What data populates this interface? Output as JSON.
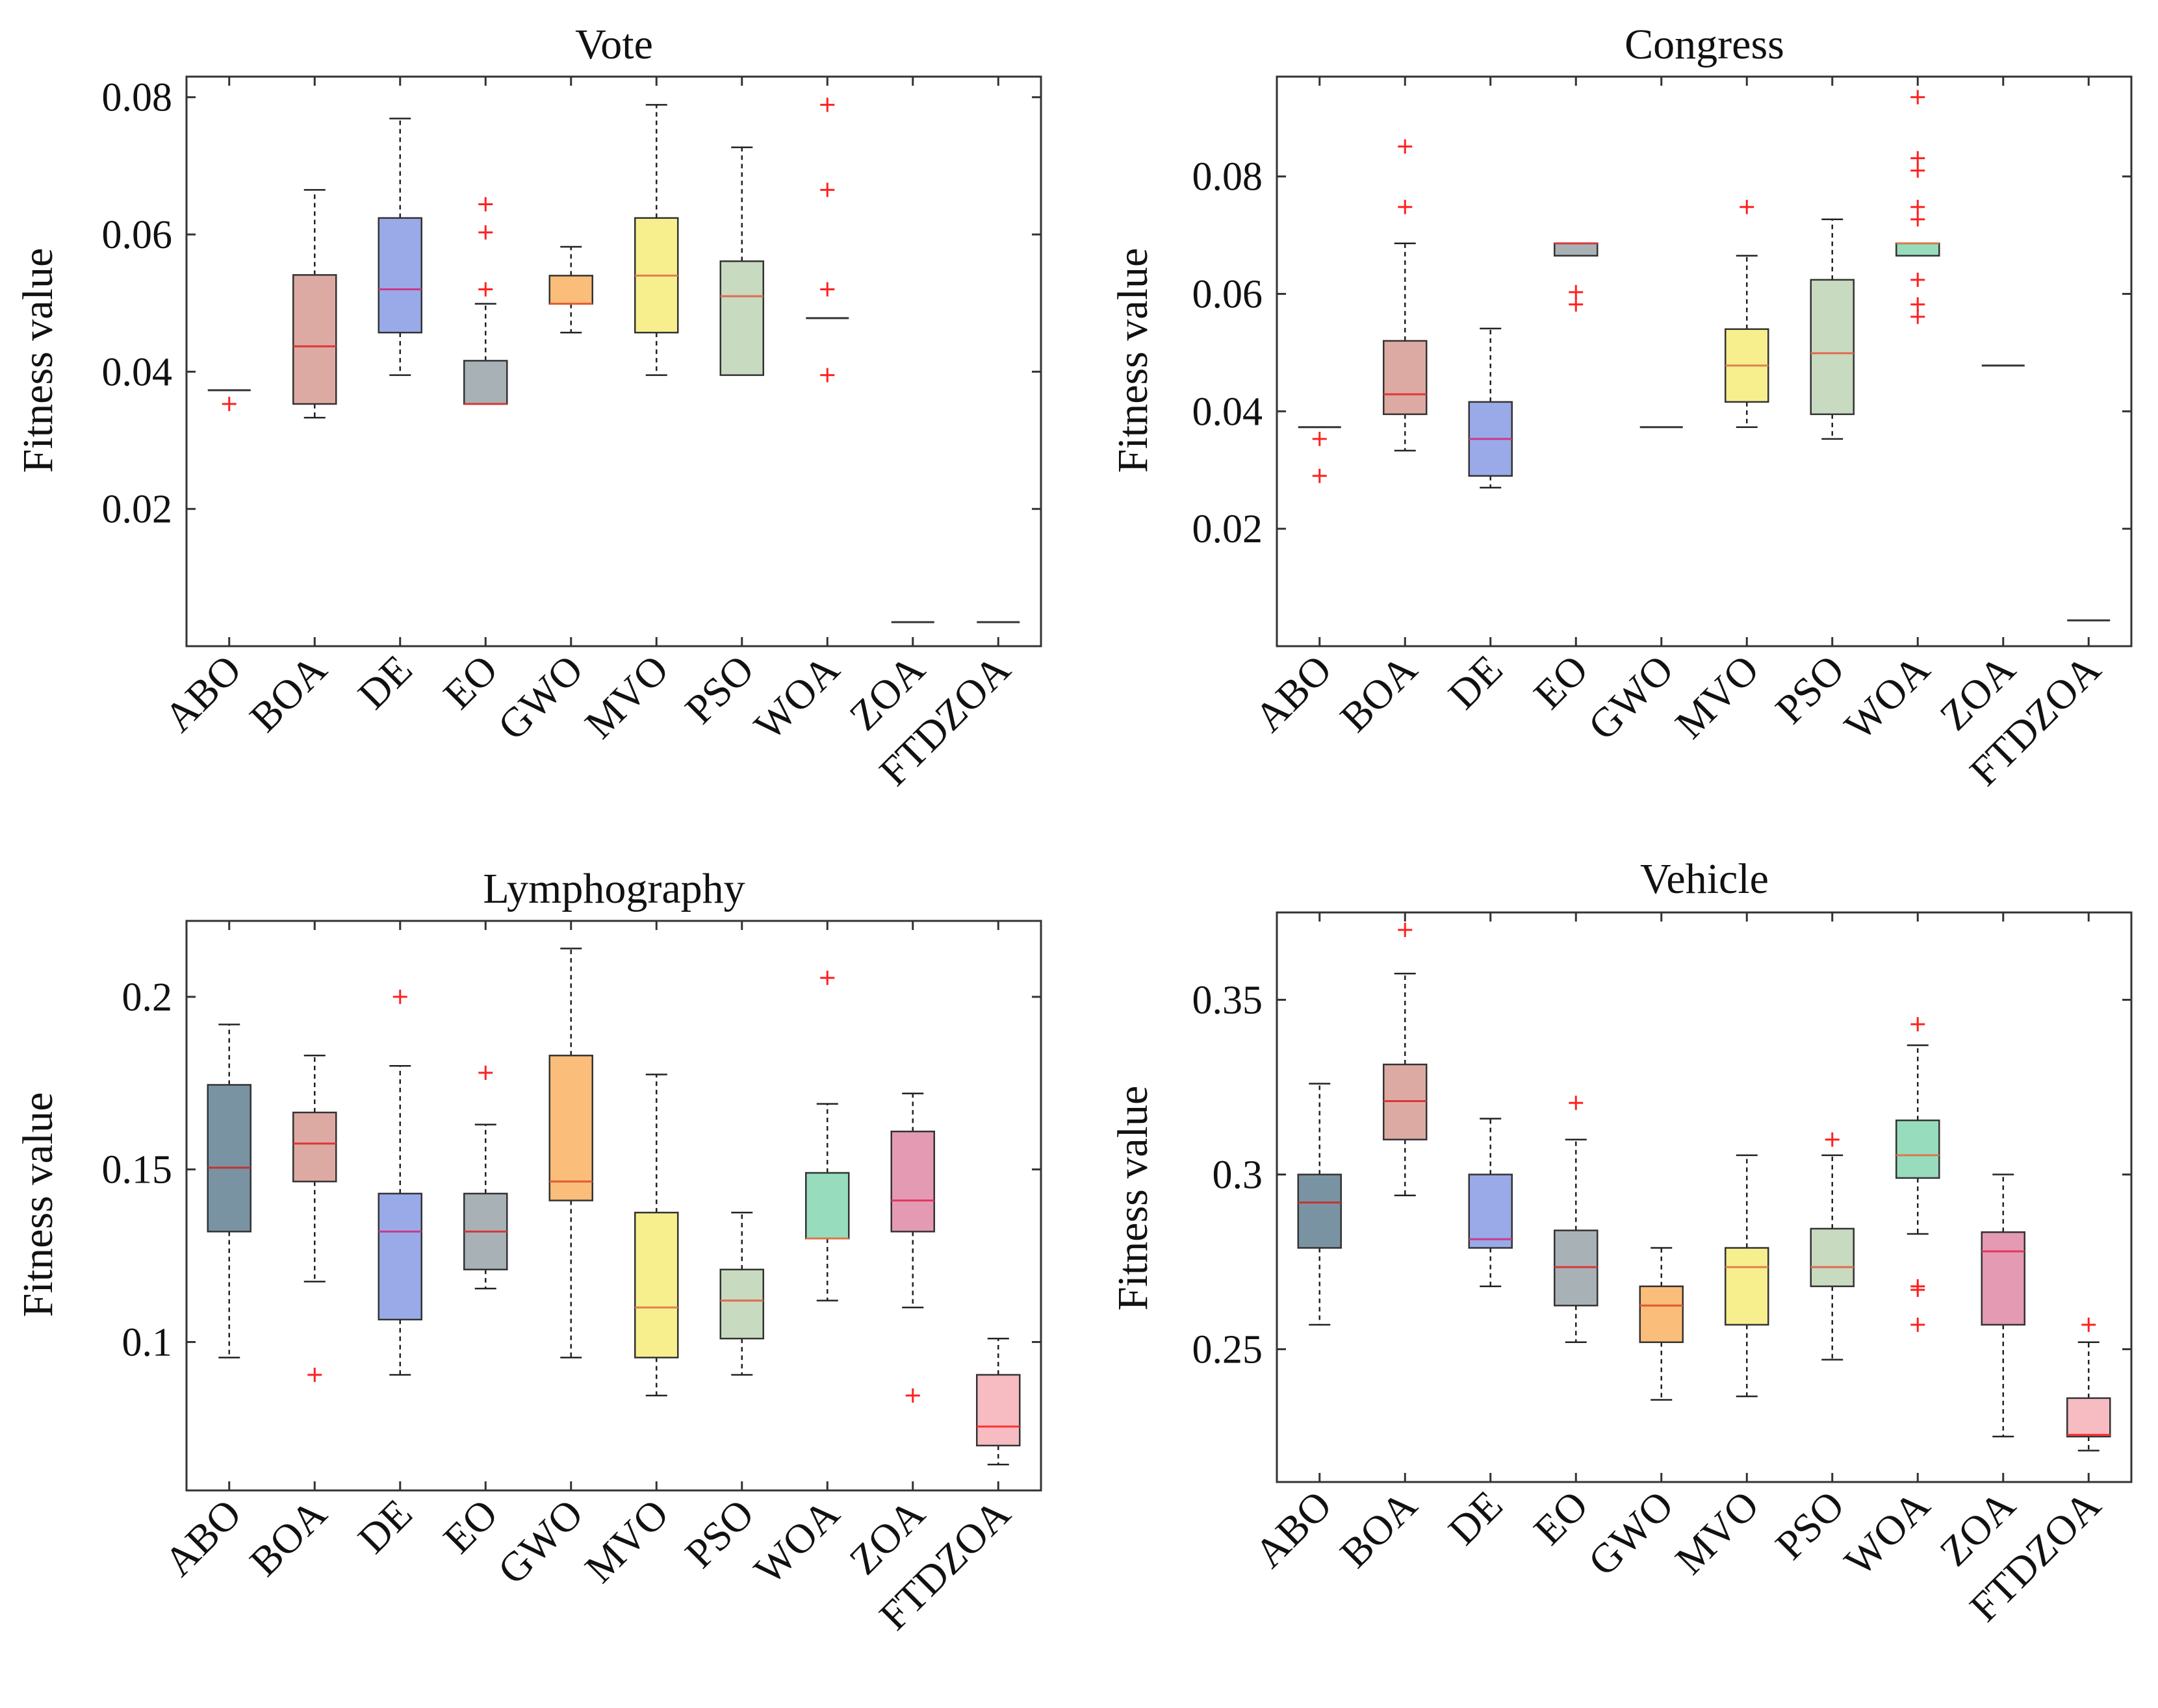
{
  "figure": {
    "algorithms": [
      "ABO",
      "BOA",
      "DE",
      "EO",
      "GWO",
      "MVO",
      "PSO",
      "WOA",
      "ZOA",
      "FTDZOA"
    ],
    "colors": {
      "ABO": "#7a93a3",
      "BOA": "#ddaaa3",
      "DE": "#9aaae8",
      "EO": "#a8b2b6",
      "GWO": "#fbbd7a",
      "MVO": "#f7ef8e",
      "PSO": "#c8dac0",
      "WOA": "#97ddbd",
      "ZOA": "#e49ab3",
      "FTDZOA": "#f6bcc1"
    },
    "median_colors": {
      "ABO": "#c03434",
      "BOA": "#d83838",
      "DE": "#c83a8a",
      "EO": "#d83838",
      "GWO": "#e05a30",
      "MVO": "#e08050",
      "PSO": "#e06a50",
      "WOA": "#d87848",
      "ZOA": "#e03860",
      "FTDZOA": "#ff3030"
    },
    "outlier_color": "#ff2020"
  },
  "chart_data": [
    {
      "type": "box",
      "title": "Vote",
      "ylabel": "Fitness value",
      "ylim": [
        0.0,
        0.083
      ],
      "yticks": [
        0.02,
        0.04,
        0.06,
        0.08
      ],
      "ytick_labels": [
        "0.02",
        "0.04",
        "0.06",
        "0.08"
      ],
      "categories": [
        "ABO",
        "BOA",
        "DE",
        "EO",
        "GWO",
        "MVO",
        "PSO",
        "WOA",
        "ZOA",
        "FTDZOA"
      ],
      "boxes": [
        {
          "name": "ABO",
          "q1": 0.0373,
          "median": 0.0373,
          "q3": 0.0373,
          "whislo": 0.0373,
          "whishi": 0.0373,
          "outliers": [
            0.0353
          ]
        },
        {
          "name": "BOA",
          "q1": 0.0353,
          "median": 0.0437,
          "q3": 0.0541,
          "whislo": 0.0333,
          "whishi": 0.0665,
          "outliers": []
        },
        {
          "name": "DE",
          "q1": 0.0457,
          "median": 0.052,
          "q3": 0.0624,
          "whislo": 0.0395,
          "whishi": 0.0769,
          "outliers": []
        },
        {
          "name": "EO",
          "q1": 0.0353,
          "median": 0.0353,
          "q3": 0.0416,
          "whislo": 0.0353,
          "whishi": 0.0499,
          "outliers": [
            0.052,
            0.0603,
            0.0644
          ]
        },
        {
          "name": "GWO",
          "q1": 0.0499,
          "median": 0.0499,
          "q3": 0.054,
          "whislo": 0.0457,
          "whishi": 0.0582,
          "outliers": []
        },
        {
          "name": "MVO",
          "q1": 0.0457,
          "median": 0.054,
          "q3": 0.0624,
          "whislo": 0.0395,
          "whishi": 0.0789,
          "outliers": []
        },
        {
          "name": "PSO",
          "q1": 0.0395,
          "median": 0.051,
          "q3": 0.0561,
          "whislo": 0.0395,
          "whishi": 0.0727,
          "outliers": []
        },
        {
          "name": "WOA",
          "q1": 0.0478,
          "median": 0.0478,
          "q3": 0.0478,
          "whislo": 0.0478,
          "whishi": 0.0478,
          "outliers": [
            0.0395,
            0.052,
            0.0665,
            0.0789
          ]
        },
        {
          "name": "ZOA",
          "q1": 0.0035,
          "median": 0.0035,
          "q3": 0.0035,
          "whislo": 0.0035,
          "whishi": 0.0035,
          "outliers": []
        },
        {
          "name": "FTDZOA",
          "q1": 0.0035,
          "median": 0.0035,
          "q3": 0.0035,
          "whislo": 0.0035,
          "whishi": 0.0035,
          "outliers": []
        }
      ]
    },
    {
      "type": "box",
      "title": "Congress",
      "ylabel": "Fitness value",
      "ylim": [
        0.0,
        0.097
      ],
      "yticks": [
        0.02,
        0.04,
        0.06,
        0.08
      ],
      "ytick_labels": [
        "0.02",
        "0.04",
        "0.06",
        "0.08"
      ],
      "categories": [
        "ABO",
        "BOA",
        "DE",
        "EO",
        "GWO",
        "MVO",
        "PSO",
        "WOA",
        "ZOA",
        "FTDZOA"
      ],
      "boxes": [
        {
          "name": "ABO",
          "q1": 0.0373,
          "median": 0.0373,
          "q3": 0.0373,
          "whislo": 0.0373,
          "whishi": 0.0373,
          "outliers": [
            0.029,
            0.0353
          ]
        },
        {
          "name": "BOA",
          "q1": 0.0395,
          "median": 0.0429,
          "q3": 0.052,
          "whislo": 0.0333,
          "whishi": 0.0686,
          "outliers": [
            0.0748,
            0.0851
          ]
        },
        {
          "name": "DE",
          "q1": 0.029,
          "median": 0.0353,
          "q3": 0.0416,
          "whislo": 0.027,
          "whishi": 0.0541,
          "outliers": []
        },
        {
          "name": "EO",
          "q1": 0.0665,
          "median": 0.0686,
          "q3": 0.0686,
          "whislo": 0.0665,
          "whishi": 0.0686,
          "outliers": [
            0.0582,
            0.0603
          ]
        },
        {
          "name": "GWO",
          "q1": 0.0373,
          "median": 0.0373,
          "q3": 0.0373,
          "whislo": 0.0373,
          "whishi": 0.0373,
          "outliers": []
        },
        {
          "name": "MVO",
          "q1": 0.0416,
          "median": 0.0478,
          "q3": 0.054,
          "whislo": 0.0373,
          "whishi": 0.0665,
          "outliers": [
            0.0748
          ]
        },
        {
          "name": "PSO",
          "q1": 0.0395,
          "median": 0.0499,
          "q3": 0.0624,
          "whislo": 0.0353,
          "whishi": 0.0727,
          "outliers": []
        },
        {
          "name": "WOA",
          "q1": 0.0665,
          "median": 0.0686,
          "q3": 0.0686,
          "whislo": 0.0665,
          "whishi": 0.0686,
          "outliers": [
            0.0561,
            0.0582,
            0.0624,
            0.0727,
            0.0748,
            0.081,
            0.0831,
            0.0935
          ]
        },
        {
          "name": "ZOA",
          "q1": 0.0478,
          "median": 0.0478,
          "q3": 0.0478,
          "whislo": 0.0478,
          "whishi": 0.0478,
          "outliers": []
        },
        {
          "name": "FTDZOA",
          "q1": 0.0044,
          "median": 0.0044,
          "q3": 0.0044,
          "whislo": 0.0044,
          "whishi": 0.0044,
          "outliers": []
        }
      ]
    },
    {
      "type": "box",
      "title": "Lymphography",
      "ylabel": "Fitness value",
      "ylim": [
        0.057,
        0.222
      ],
      "yticks": [
        0.1,
        0.15,
        0.2
      ],
      "ytick_labels": [
        "0.1",
        "0.15",
        "0.2"
      ],
      "categories": [
        "ABO",
        "BOA",
        "DE",
        "EO",
        "GWO",
        "MVO",
        "PSO",
        "WOA",
        "ZOA",
        "FTDZOA"
      ],
      "boxes": [
        {
          "name": "ABO",
          "q1": 0.132,
          "median": 0.1505,
          "q3": 0.1745,
          "whislo": 0.0955,
          "whishi": 0.192,
          "outliers": []
        },
        {
          "name": "BOA",
          "q1": 0.1465,
          "median": 0.1575,
          "q3": 0.1665,
          "whislo": 0.1175,
          "whishi": 0.183,
          "outliers": [
            0.0905
          ]
        },
        {
          "name": "DE",
          "q1": 0.1065,
          "median": 0.132,
          "q3": 0.143,
          "whislo": 0.0905,
          "whishi": 0.18,
          "outliers": [
            0.2
          ]
        },
        {
          "name": "EO",
          "q1": 0.121,
          "median": 0.132,
          "q3": 0.143,
          "whislo": 0.1155,
          "whishi": 0.163,
          "outliers": [
            0.178
          ]
        },
        {
          "name": "GWO",
          "q1": 0.141,
          "median": 0.1465,
          "q3": 0.183,
          "whislo": 0.0955,
          "whishi": 0.214,
          "outliers": []
        },
        {
          "name": "MVO",
          "q1": 0.0955,
          "median": 0.11,
          "q3": 0.1375,
          "whislo": 0.0845,
          "whishi": 0.1775,
          "outliers": []
        },
        {
          "name": "PSO",
          "q1": 0.101,
          "median": 0.112,
          "q3": 0.121,
          "whislo": 0.0905,
          "whishi": 0.1375,
          "outliers": []
        },
        {
          "name": "WOA",
          "q1": 0.13,
          "median": 0.13,
          "q3": 0.149,
          "whislo": 0.112,
          "whishi": 0.169,
          "outliers": [
            0.2055
          ]
        },
        {
          "name": "ZOA",
          "q1": 0.132,
          "median": 0.141,
          "q3": 0.161,
          "whislo": 0.11,
          "whishi": 0.172,
          "outliers": [
            0.0845
          ]
        },
        {
          "name": "FTDZOA",
          "q1": 0.07,
          "median": 0.0755,
          "q3": 0.0905,
          "whislo": 0.0645,
          "whishi": 0.101,
          "outliers": []
        }
      ]
    },
    {
      "type": "box",
      "title": "Vehicle",
      "ylabel": "Fitness value",
      "ylim": [
        0.212,
        0.375
      ],
      "yticks": [
        0.25,
        0.3,
        0.35
      ],
      "ytick_labels": [
        "0.25",
        "0.3",
        "0.35"
      ],
      "categories": [
        "ABO",
        "BOA",
        "DE",
        "EO",
        "GWO",
        "MVO",
        "PSO",
        "WOA",
        "ZOA",
        "FTDZOA"
      ],
      "boxes": [
        {
          "name": "ABO",
          "q1": 0.279,
          "median": 0.292,
          "q3": 0.3,
          "whislo": 0.257,
          "whishi": 0.326,
          "outliers": []
        },
        {
          "name": "BOA",
          "q1": 0.31,
          "median": 0.321,
          "q3": 0.3315,
          "whislo": 0.294,
          "whishi": 0.3575,
          "outliers": [
            0.37
          ]
        },
        {
          "name": "DE",
          "q1": 0.279,
          "median": 0.2815,
          "q3": 0.3,
          "whislo": 0.268,
          "whishi": 0.316,
          "outliers": []
        },
        {
          "name": "EO",
          "q1": 0.2625,
          "median": 0.2735,
          "q3": 0.284,
          "whislo": 0.252,
          "whishi": 0.31,
          "outliers": [
            0.3205
          ]
        },
        {
          "name": "GWO",
          "q1": 0.252,
          "median": 0.2625,
          "q3": 0.268,
          "whislo": 0.2355,
          "whishi": 0.279,
          "outliers": []
        },
        {
          "name": "MVO",
          "q1": 0.257,
          "median": 0.2735,
          "q3": 0.279,
          "whislo": 0.2365,
          "whishi": 0.3055,
          "outliers": []
        },
        {
          "name": "PSO",
          "q1": 0.268,
          "median": 0.2735,
          "q3": 0.2845,
          "whislo": 0.247,
          "whishi": 0.3055,
          "outliers": [
            0.31
          ]
        },
        {
          "name": "WOA",
          "q1": 0.299,
          "median": 0.3055,
          "q3": 0.3155,
          "whislo": 0.283,
          "whishi": 0.337,
          "outliers": [
            0.257,
            0.267,
            0.268,
            0.343
          ]
        },
        {
          "name": "ZOA",
          "q1": 0.257,
          "median": 0.278,
          "q3": 0.2835,
          "whislo": 0.225,
          "whishi": 0.3,
          "outliers": []
        },
        {
          "name": "FTDZOA",
          "q1": 0.225,
          "median": 0.2255,
          "q3": 0.236,
          "whislo": 0.221,
          "whishi": 0.252,
          "outliers": [
            0.257
          ]
        }
      ]
    }
  ]
}
